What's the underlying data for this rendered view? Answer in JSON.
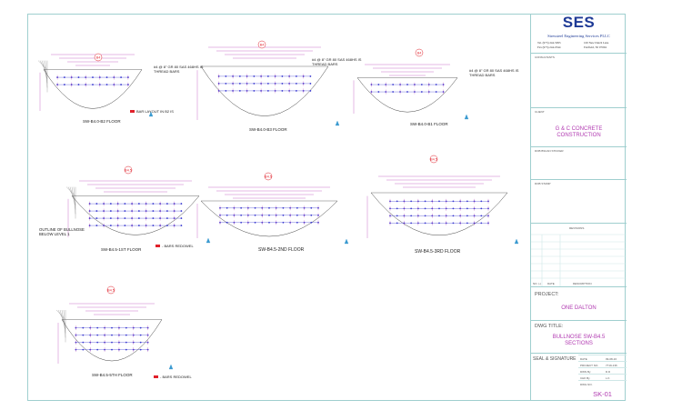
{
  "sections": [
    {
      "id": "sw-b4-b2",
      "tag": "B4",
      "floor_label": "SW-B4.0-B2 FLOOR",
      "note": "#4 @ 8\" GR 80 SAS 468HS IS THREAD BARS",
      "legend": "BAR LAYOUT IN B2 IS"
    },
    {
      "id": "sw-b4-b3",
      "tag": "B4",
      "floor_label": "SW-B4.0-B3 FLOOR",
      "note": "#4 @ 8\" GR 80 SAS 468HS IS THREAD BARS"
    },
    {
      "id": "sw-b4-b1",
      "tag": "B4",
      "floor_label": "SW-B4.0-B1 FLOOR",
      "note": "#4 @ 8\" GR 80 SAS 468HS IS THREAD BARS"
    },
    {
      "id": "sw-b45-1st",
      "tag": "B4.5",
      "floor_label": "SW-B4.5-1ST FLOOR",
      "outline_note": "OUTLINE OF BULLNOSE BELOW LEVEL 1",
      "legend": "- BARS REDOWEL"
    },
    {
      "id": "sw-b45-2nd",
      "tag": "B4.5",
      "floor_label": "SW-B4.5-2ND FLOOR"
    },
    {
      "id": "sw-b45-3rd",
      "tag": "B4.5",
      "floor_label": "SW-B4.5-3RD FLOOR"
    },
    {
      "id": "sw-b45-5th",
      "tag": "B4.5",
      "floor_label": "SW-B4.5-5TH FLOOR",
      "legend": "- BARS REDOWEL"
    }
  ],
  "title_block": {
    "logo": "SES",
    "company": "Stressteel Engineering Services PLLC",
    "tel": "Tel. (973) 244-5995",
    "fax": "Fax (973) 244-0544",
    "address1": "100 New Dutch Lane",
    "address2": "Fairfield, NJ 07004",
    "consultants_label": "CONSULTANTS",
    "client_label": "CLIENT",
    "client": "G & C CONCRETE CONSTRUCTION",
    "bim_label": "DOB BSCAN STICKER",
    "stamp_label": "DOB STAMP",
    "revisions_label": "REVISIONS",
    "rev_no_label": "NO. (-)",
    "rev_date_label": "DATE",
    "rev_desc_label": "DESCRIPTION",
    "project_label": "PROJECT:",
    "project": "ONE DALTON",
    "dwg_title_label": "DWG TITLE:",
    "dwg_title": "BULLNOSE SW-B4.5 SECTIONS",
    "seal_label": "SEAL & SIGNATURE",
    "info_rows": [
      {
        "label": "DATE",
        "value": "09-08-16"
      },
      {
        "label": "PROJECT NO.",
        "value": "7719-136"
      },
      {
        "label": "DWN By",
        "value": "D.D"
      },
      {
        "label": "CHK By",
        "value": "L.K"
      },
      {
        "label": "DWG NO.",
        "value": ""
      }
    ],
    "sheet_no": "SK-01"
  },
  "colors": {
    "purple": "#b13ab1",
    "blue": "#3a3ad0",
    "red": "#e0202a",
    "frame": "#9fcfcf",
    "navy": "#1e3a96"
  }
}
